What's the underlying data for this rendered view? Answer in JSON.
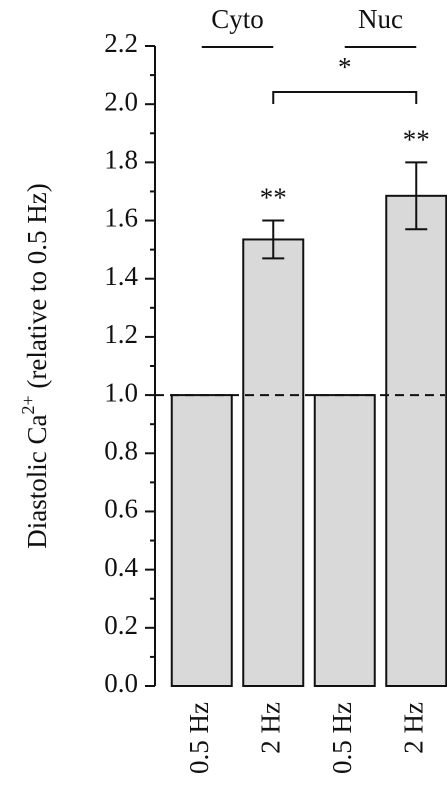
{
  "chart_data": {
    "type": "bar",
    "y_label": "Diastolic Ca",
    "y_label_sup": "2+",
    "y_label_end": " (relative to 0.5 Hz)",
    "groups": [
      "Cyto",
      "Nuc"
    ],
    "categories": [
      "0.5 Hz",
      "2 Hz",
      "0.5 Hz",
      "2 Hz"
    ],
    "values": [
      1,
      1.535,
      1,
      1.685
    ],
    "errors": [
      null,
      0.065,
      null,
      0.115
    ],
    "value_annotations": [
      null,
      "**",
      null,
      "**"
    ],
    "comparison_label": "*",
    "color": "#d9d9d9",
    "reference_line": 1,
    "ylim": [
      0,
      2.2
    ],
    "yticks": [
      {
        "value": 0,
        "label": "0.0"
      },
      0.2,
      0.4,
      0.6,
      0.8,
      {
        "value": 1,
        "label": "1.0"
      },
      1.2,
      1.4,
      1.6,
      1.8,
      {
        "value": 2,
        "label": "2.0"
      },
      2.2
    ],
    "minor_yticks": [
      0.1,
      0.3,
      0.5,
      0.7,
      0.9,
      1.1,
      1.3,
      1.5,
      1.7,
      1.9,
      2.1
    ]
  }
}
